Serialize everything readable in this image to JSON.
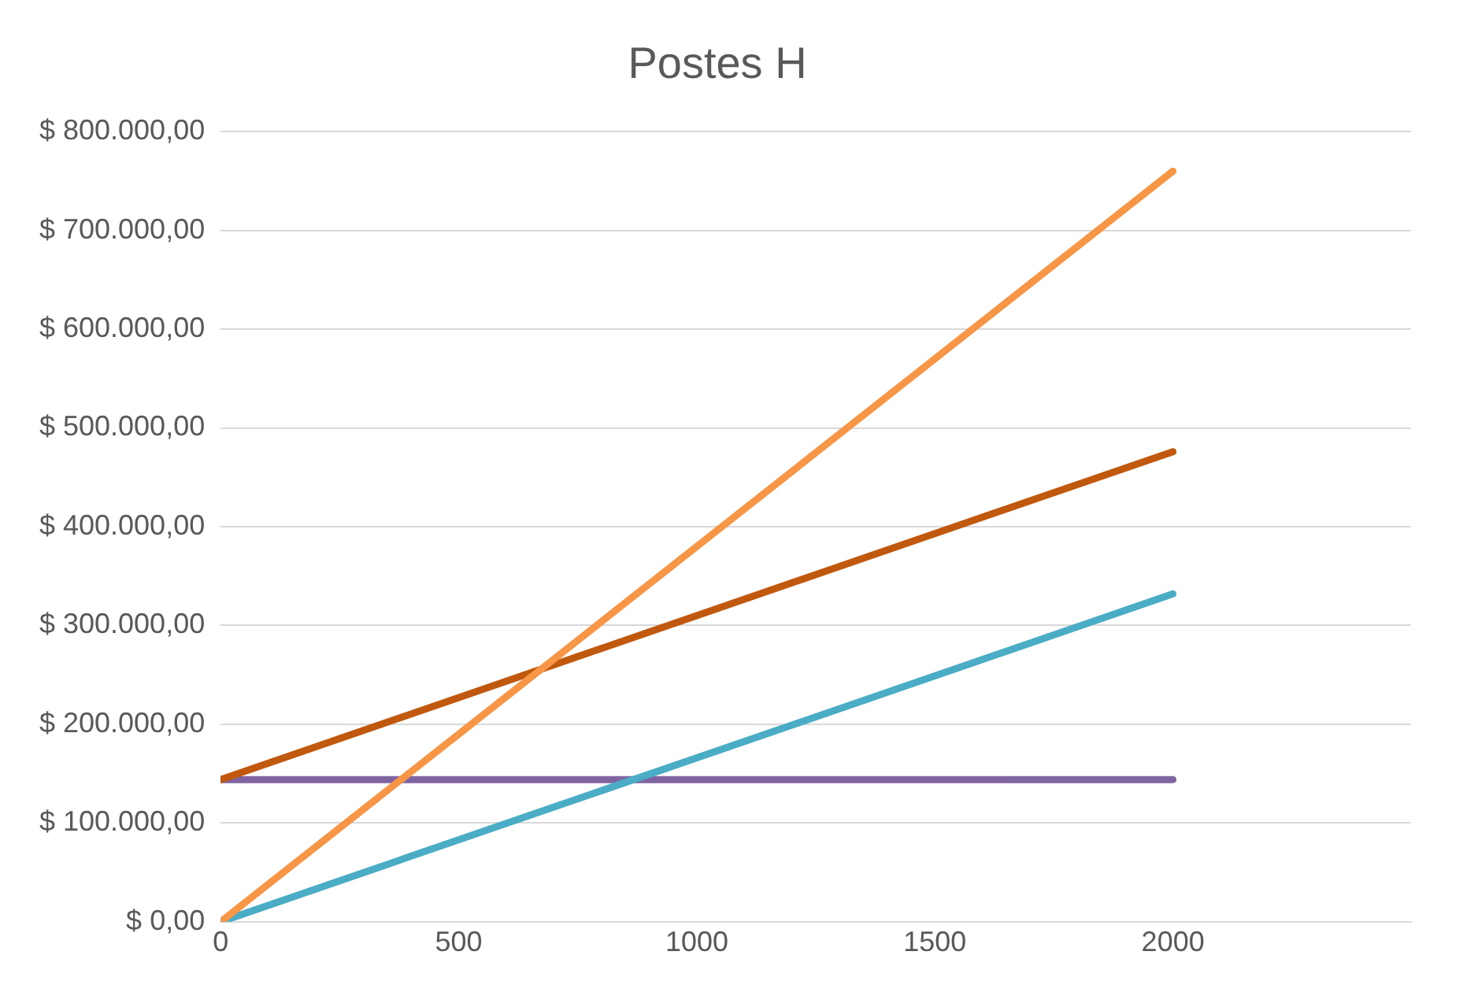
{
  "chart_data": {
    "type": "line",
    "title": "Postes H",
    "x": [
      0,
      2000
    ],
    "series": [
      {
        "color": "#f79646",
        "values": [
          0,
          760000
        ]
      },
      {
        "color": "#c0590e",
        "values": [
          144000,
          476000
        ]
      },
      {
        "color": "#4bacc6",
        "values": [
          0,
          332000
        ]
      },
      {
        "color": "#8064a2",
        "values": [
          144000,
          144000
        ]
      }
    ],
    "xlim": [
      0,
      2500
    ],
    "xticks": [
      0,
      500,
      1000,
      1500,
      2000
    ],
    "ylim": [
      0,
      800000
    ],
    "yticks": [
      {
        "value": 0,
        "label": "$ 0,00"
      },
      {
        "value": 100000,
        "label": "$ 100.000,00"
      },
      {
        "value": 200000,
        "label": "$ 200.000,00"
      },
      {
        "value": 300000,
        "label": "$ 300.000,00"
      },
      {
        "value": 400000,
        "label": "$ 400.000,00"
      },
      {
        "value": 500000,
        "label": "$ 500.000,00"
      },
      {
        "value": 600000,
        "label": "$ 600.000,00"
      },
      {
        "value": 700000,
        "label": "$ 700.000,00"
      },
      {
        "value": 800000,
        "label": "$ 800.000,00"
      }
    ],
    "grid": "y",
    "marker": "none",
    "line_style": "solid",
    "legend": false
  }
}
